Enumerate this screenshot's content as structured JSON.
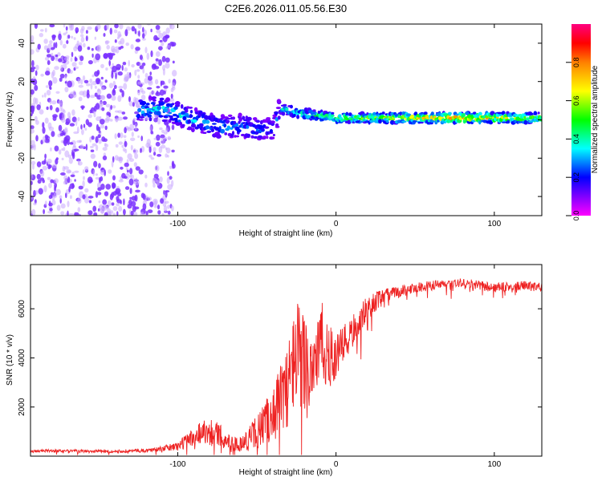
{
  "title": "C2E6.2026.011.05.56.E30",
  "chart_data": [
    {
      "type": "heatmap",
      "name": "spectrogram",
      "xlabel": "Height of straight line (km)",
      "ylabel": "Frequency (Hz)",
      "xlim": [
        -193,
        130
      ],
      "ylim": [
        -50,
        50
      ],
      "xticks": [
        -100,
        0,
        100
      ],
      "xtick_labels": [
        "-100",
        "0",
        "100"
      ],
      "yticks": [
        -40,
        -20,
        0,
        20,
        40
      ],
      "ytick_labels": [
        "-40",
        "-20",
        "0",
        "20",
        "40"
      ],
      "colorbar": {
        "label": "Normalized spectral amplitude",
        "range": [
          0,
          1
        ],
        "ticks": [
          0.0,
          0.2,
          0.4,
          0.6,
          0.8
        ],
        "tick_labels": [
          "0.0",
          "0.2",
          "0.4",
          "0.6",
          "0.8"
        ]
      },
      "ridge": [
        {
          "x": -125,
          "f": 5,
          "amp": 0.4
        },
        {
          "x": -110,
          "f": 6,
          "amp": 0.45
        },
        {
          "x": -100,
          "f": 3,
          "amp": 0.45
        },
        {
          "x": -90,
          "f": 0,
          "amp": 0.4
        },
        {
          "x": -80,
          "f": -2,
          "amp": 0.4
        },
        {
          "x": -70,
          "f": -4,
          "amp": 0.4
        },
        {
          "x": -60,
          "f": -3,
          "amp": 0.35
        },
        {
          "x": -50,
          "f": -5,
          "amp": 0.35
        },
        {
          "x": -40,
          "f": -5,
          "amp": 0.3
        },
        {
          "x": -35,
          "f": 6,
          "amp": 0.45
        },
        {
          "x": -20,
          "f": 3,
          "amp": 0.5
        },
        {
          "x": -10,
          "f": 2,
          "amp": 0.55
        },
        {
          "x": 0,
          "f": 1,
          "amp": 0.6
        },
        {
          "x": 20,
          "f": 1,
          "amp": 0.65
        },
        {
          "x": 40,
          "f": 1,
          "amp": 0.7
        },
        {
          "x": 60,
          "f": 1,
          "amp": 0.75
        },
        {
          "x": 80,
          "f": 1,
          "amp": 0.85
        },
        {
          "x": 100,
          "f": 1,
          "amp": 0.75
        },
        {
          "x": 130,
          "f": 1,
          "amp": 0.7
        }
      ]
    },
    {
      "type": "line",
      "name": "snr",
      "xlabel": "Height of straight line (km)",
      "ylabel": "SNR (10 * v/v)",
      "xlim": [
        -193,
        130
      ],
      "ylim": [
        0,
        7800
      ],
      "xticks": [
        -100,
        0,
        100
      ],
      "xtick_labels": [
        "-100",
        "0",
        "100"
      ],
      "yticks": [
        2000,
        4000,
        6000
      ],
      "ytick_labels": [
        "2000",
        "4000",
        "6000"
      ],
      "series": [
        {
          "name": "SNR",
          "color": "#ee2222",
          "x": [
            -193,
            -180,
            -160,
            -140,
            -120,
            -110,
            -100,
            -95,
            -90,
            -85,
            -80,
            -75,
            -70,
            -65,
            -60,
            -55,
            -50,
            -45,
            -40,
            -35,
            -30,
            -27,
            -24,
            -21,
            -18,
            -15,
            -12,
            -9,
            -6,
            -3,
            0,
            3,
            6,
            10,
            15,
            20,
            25,
            30,
            40,
            50,
            60,
            70,
            80,
            90,
            100,
            110,
            120,
            130
          ],
          "y": [
            200,
            220,
            200,
            200,
            230,
            300,
            400,
            600,
            800,
            1000,
            1000,
            900,
            700,
            500,
            500,
            700,
            1000,
            1300,
            1800,
            2300,
            3000,
            3800,
            4200,
            4000,
            3500,
            3800,
            4300,
            4500,
            4400,
            4000,
            4000,
            4300,
            4600,
            5000,
            5600,
            6000,
            6300,
            6500,
            6700,
            6850,
            6950,
            7000,
            7050,
            6950,
            6850,
            6900,
            6950,
            6900
          ],
          "spread": [
            60,
            60,
            60,
            60,
            80,
            100,
            200,
            300,
            400,
            500,
            600,
            500,
            400,
            300,
            300,
            500,
            700,
            900,
            1200,
            1500,
            1800,
            2000,
            2200,
            2200,
            2000,
            1800,
            1800,
            1800,
            1600,
            1200,
            1000,
            900,
            800,
            700,
            600,
            500,
            400,
            300,
            250,
            200,
            200,
            200,
            200,
            200,
            200,
            180,
            180,
            180
          ]
        }
      ]
    }
  ],
  "colors": {
    "ramp": [
      "#ff00ff",
      "#8000ff",
      "#0000ff",
      "#00ffff",
      "#00ff00",
      "#ffff00",
      "#ff8000",
      "#ff0000",
      "#ff0080"
    ],
    "scatter": "#7a30ff",
    "line": "#ee2222"
  }
}
